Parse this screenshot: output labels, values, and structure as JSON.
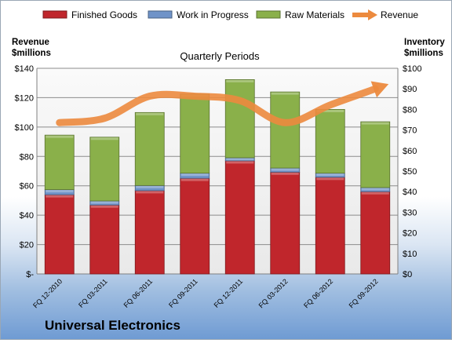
{
  "company": "Universal Electronics",
  "chart_data": {
    "type": "bar",
    "title": "Quarterly Periods",
    "left_axis_label": [
      "Revenue",
      "$millions"
    ],
    "right_axis_label": [
      "Inventory",
      "$millions"
    ],
    "categories": [
      "FQ 12-2010",
      "FQ 03-2011",
      "FQ 06-2011",
      "FQ 09-2011",
      "FQ 12-2011",
      "FQ 03-2012",
      "FQ 06-2012",
      "FQ 09-2012"
    ],
    "stacked": true,
    "legend_position": "top",
    "grid": true,
    "left_ylim": [
      0,
      140
    ],
    "left_ticks": [
      "$-",
      "$20",
      "$40",
      "$60",
      "$80",
      "$100",
      "$120",
      "$140"
    ],
    "right_ylim": [
      0,
      100
    ],
    "right_ticks": [
      "$0",
      "$10",
      "$20",
      "$30",
      "$40",
      "$50",
      "$60",
      "$70",
      "$80",
      "$90",
      "$100"
    ],
    "series": [
      {
        "name": "Finished Goods",
        "axis": "right",
        "kind": "bar",
        "color": "#c0262c",
        "values": [
          38.5,
          33.5,
          40.5,
          46.5,
          55,
          49.5,
          47,
          40
        ]
      },
      {
        "name": "Work in Progress",
        "axis": "right",
        "kind": "bar",
        "color": "#6f93c8",
        "values": [
          2.5,
          2,
          2.5,
          2.5,
          1.5,
          2,
          2,
          2
        ]
      },
      {
        "name": "Raw Materials",
        "axis": "right",
        "kind": "bar",
        "color": "#8ab04a",
        "values": [
          26.5,
          31,
          35.5,
          38.5,
          38,
          37,
          31,
          32
        ]
      },
      {
        "name": "Revenue",
        "axis": "left",
        "kind": "line",
        "color": "#ec8a3e",
        "values": [
          103,
          106,
          121,
          121,
          118,
          103,
          115,
          126
        ]
      }
    ]
  }
}
